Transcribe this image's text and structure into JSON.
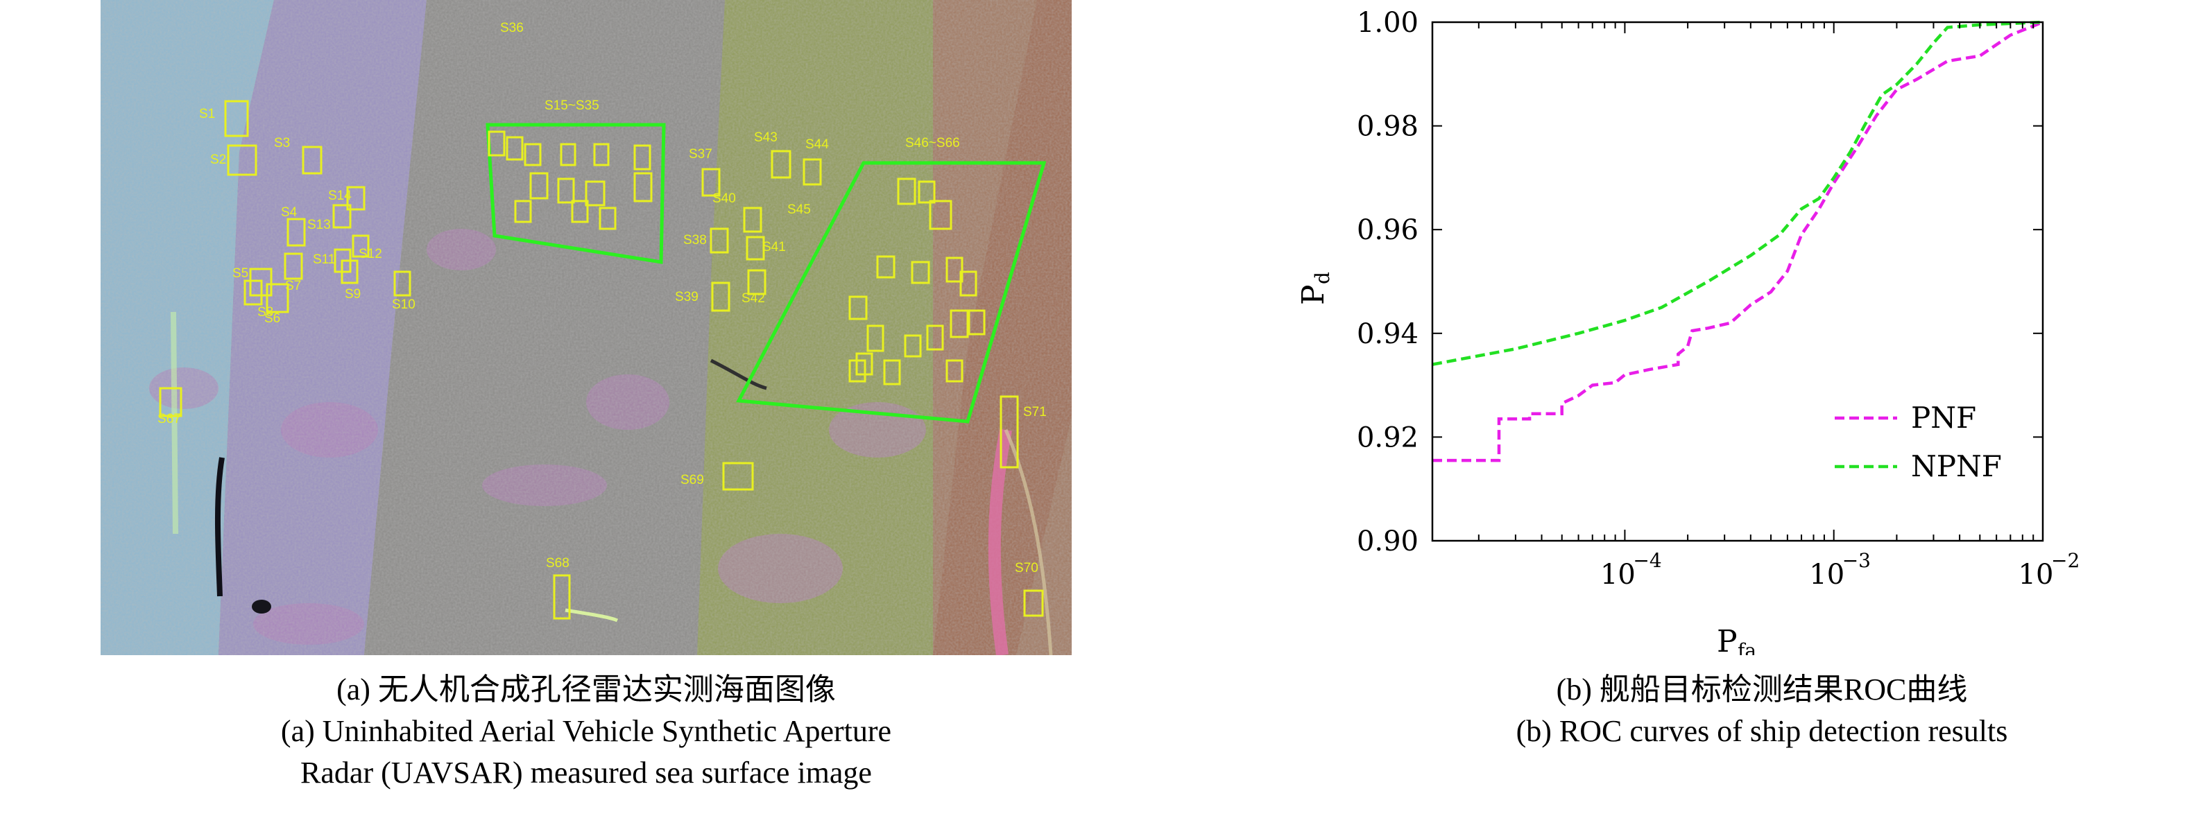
{
  "sar_image": {
    "bottom_labels": [
      "S6",
      "S8",
      "S9",
      "S10"
    ],
    "ship_labels": [
      "S1",
      "S2",
      "S3",
      "S4",
      "S5",
      "S6",
      "S7",
      "S8",
      "S9",
      "S10",
      "S11",
      "S12",
      "S13",
      "S14",
      "S15~S35",
      "S36",
      "S37",
      "S38",
      "S39",
      "S40",
      "S41",
      "S42",
      "S43",
      "S44",
      "S45",
      "S46~S66",
      "S67",
      "S68",
      "S69",
      "S70",
      "S71"
    ]
  },
  "captions": {
    "left_line1": "(a) 无人机合成孔径雷达实测海面图像",
    "left_line2": "(a) Uninhabited Aerial Vehicle Synthetic Aperture",
    "left_line3": "Radar (UAVSAR) measured sea surface image",
    "right_line1": "(b) 舰船目标检测结果ROC曲线",
    "right_line2": "(b) ROC curves of ship detection results"
  },
  "chart_data": {
    "type": "line",
    "xlabel": "P_fa",
    "ylabel": "P_d",
    "xscale": "log",
    "xlim": [
      1.2e-05,
      0.01
    ],
    "ylim": [
      0.9,
      1.0
    ],
    "y_ticks": [
      "0.90",
      "0.92",
      "0.94",
      "0.96",
      "0.98",
      "1.00"
    ],
    "x_ticks": [
      {
        "value": 0.0001,
        "label": "10",
        "exp": "−4"
      },
      {
        "value": 0.001,
        "label": "10",
        "exp": "−3"
      },
      {
        "value": 0.01,
        "label": "10",
        "exp": "−2"
      }
    ],
    "legend_position": "bottom-right",
    "series": [
      {
        "name": "PNF",
        "color": "#e81ee8",
        "points": [
          [
            1.2e-05,
            0.9155
          ],
          [
            2.5e-05,
            0.9155
          ],
          [
            2.5e-05,
            0.9235
          ],
          [
            3.5e-05,
            0.9235
          ],
          [
            3.5e-05,
            0.9245
          ],
          [
            5e-05,
            0.9245
          ],
          [
            5e-05,
            0.9265
          ],
          [
            6e-05,
            0.928
          ],
          [
            7e-05,
            0.93
          ],
          [
            9e-05,
            0.9305
          ],
          [
            0.0001,
            0.932
          ],
          [
            0.00013,
            0.933
          ],
          [
            0.00018,
            0.934
          ],
          [
            0.00018,
            0.936
          ],
          [
            0.0002,
            0.9375
          ],
          [
            0.00021,
            0.9405
          ],
          [
            0.00025,
            0.941
          ],
          [
            0.00032,
            0.942
          ],
          [
            0.0004,
            0.9455
          ],
          [
            0.0005,
            0.948
          ],
          [
            0.0006,
            0.952
          ],
          [
            0.0007,
            0.959
          ],
          [
            0.00085,
            0.964
          ],
          [
            0.001,
            0.969
          ],
          [
            0.0013,
            0.976
          ],
          [
            0.0016,
            0.982
          ],
          [
            0.002,
            0.987
          ],
          [
            0.0025,
            0.989
          ],
          [
            0.0035,
            0.9925
          ],
          [
            0.005,
            0.9935
          ],
          [
            0.007,
            0.9975
          ],
          [
            0.01,
            1.0
          ]
        ]
      },
      {
        "name": "NPNF",
        "color": "#22e022",
        "points": [
          [
            1.2e-05,
            0.934
          ],
          [
            3e-05,
            0.937
          ],
          [
            6e-05,
            0.94
          ],
          [
            0.0001,
            0.9425
          ],
          [
            0.00015,
            0.945
          ],
          [
            0.00025,
            0.95
          ],
          [
            0.0004,
            0.955
          ],
          [
            0.00055,
            0.959
          ],
          [
            0.0007,
            0.964
          ],
          [
            0.00085,
            0.966
          ],
          [
            0.001,
            0.97
          ],
          [
            0.0012,
            0.975
          ],
          [
            0.0014,
            0.98
          ],
          [
            0.0017,
            0.986
          ],
          [
            0.002,
            0.988
          ],
          [
            0.0025,
            0.992
          ],
          [
            0.003,
            0.996
          ],
          [
            0.0035,
            0.999
          ],
          [
            0.005,
            0.9995
          ],
          [
            0.01,
            1.0
          ]
        ]
      }
    ]
  }
}
